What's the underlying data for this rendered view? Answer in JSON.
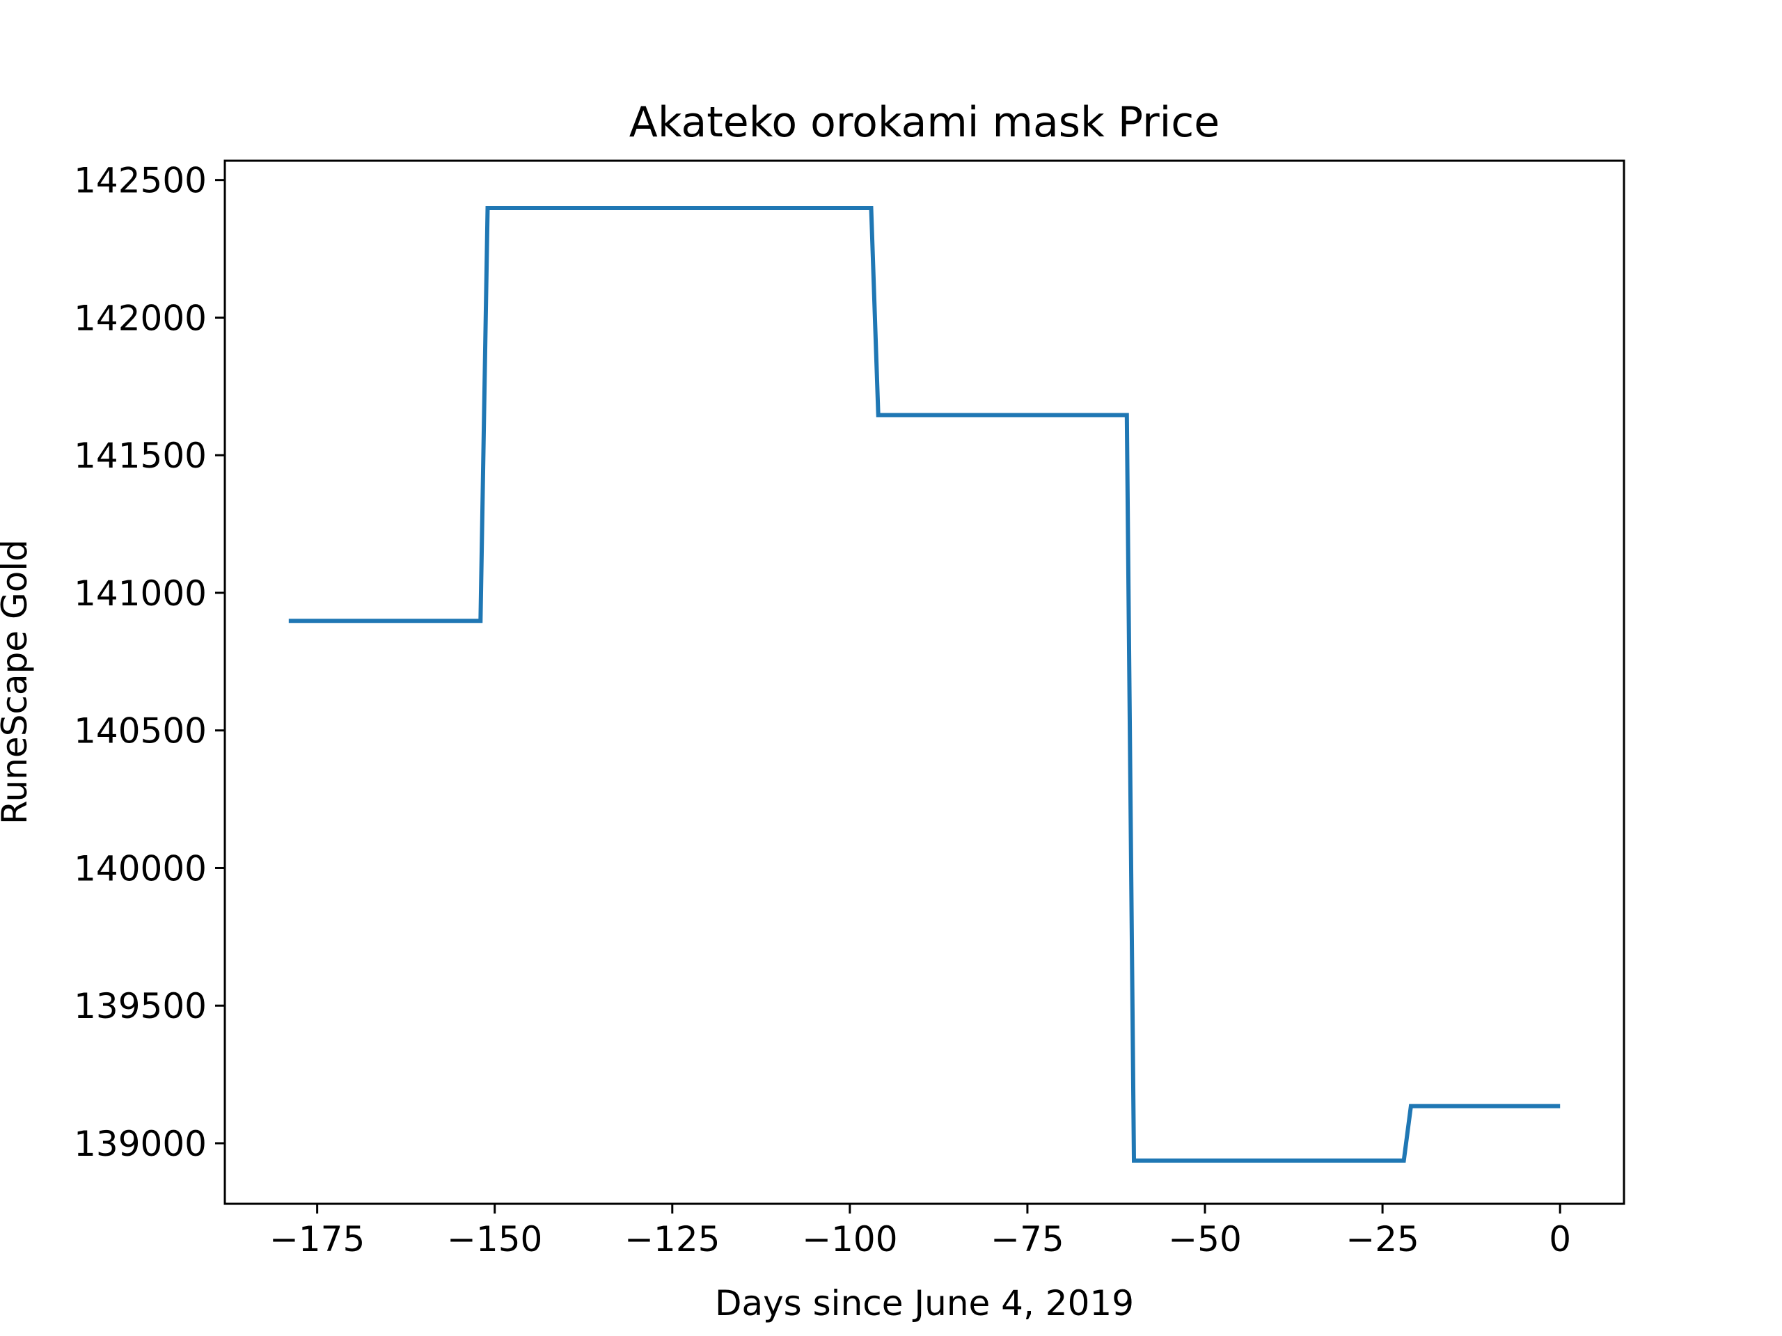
{
  "chart_data": {
    "type": "line",
    "title": "Akateko orokami mask Price",
    "xlabel": "Days since June 4, 2019",
    "ylabel": "RuneScape Gold",
    "xlim": [
      -188,
      9
    ],
    "ylim": [
      138780,
      142570
    ],
    "xticks": [
      -175,
      -150,
      -125,
      -100,
      -75,
      -50,
      -25,
      0
    ],
    "xtick_labels": [
      "−175",
      "−150",
      "−125",
      "−100",
      "−75",
      "−50",
      "−25",
      "0"
    ],
    "yticks": [
      139000,
      139500,
      140000,
      140500,
      141000,
      141500,
      142000,
      142500
    ],
    "ytick_labels": [
      "139000",
      "139500",
      "140000",
      "140500",
      "141000",
      "141500",
      "142000",
      "142500"
    ],
    "grid": false,
    "legend": "none",
    "series": [
      {
        "color": "#1f77b4",
        "x": [
          -179,
          -152,
          -151,
          -97,
          -96,
          -61,
          -60,
          -22,
          -21,
          0
        ],
        "y": [
          140898,
          140898,
          142398,
          142398,
          141646,
          141646,
          138937,
          138937,
          139135,
          139135
        ]
      }
    ]
  }
}
